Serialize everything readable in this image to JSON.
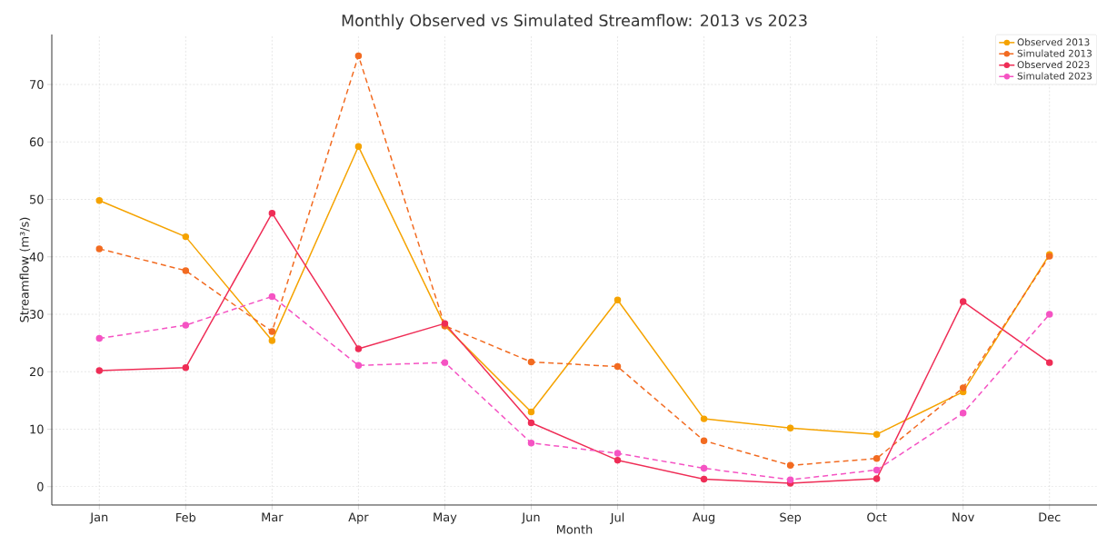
{
  "chart_data": {
    "type": "line",
    "title": "Monthly Observed vs Simulated Streamflow: 2013 vs 2023",
    "xlabel": "Month",
    "ylabel": "Streamflow (m³/s)",
    "categories": [
      "Jan",
      "Feb",
      "Mar",
      "Apr",
      "May",
      "Jun",
      "Jul",
      "Aug",
      "Sep",
      "Oct",
      "Nov",
      "Dec"
    ],
    "series": [
      {
        "name": "Observed 2013",
        "color": "#f5a300",
        "line_style": "solid",
        "values": [
          49.8,
          43.5,
          25.4,
          59.2,
          28.0,
          13.0,
          32.5,
          11.8,
          10.2,
          9.1,
          16.5,
          40.4
        ]
      },
      {
        "name": "Simulated 2013",
        "color": "#f26b21",
        "line_style": "dashed",
        "values": [
          41.4,
          37.6,
          27.0,
          75.0,
          28.0,
          21.7,
          20.9,
          8.0,
          3.7,
          4.9,
          17.2,
          40.1
        ]
      },
      {
        "name": "Observed 2023",
        "color": "#ef2d56",
        "line_style": "solid",
        "values": [
          20.2,
          20.7,
          47.6,
          24.0,
          28.4,
          11.1,
          4.6,
          1.3,
          0.6,
          1.4,
          32.2,
          21.6
        ]
      },
      {
        "name": "Simulated 2023",
        "color": "#f553c3",
        "line_style": "dashed",
        "values": [
          25.8,
          28.1,
          33.1,
          21.1,
          21.6,
          7.6,
          5.8,
          3.2,
          1.2,
          2.9,
          12.8,
          30.0
        ]
      }
    ],
    "ylim": [
      -3.2,
      78.7
    ],
    "yticks": [
      0,
      10,
      20,
      30,
      40,
      50,
      60,
      70
    ],
    "grid": true,
    "legend": "top right",
    "marker": "circle"
  }
}
